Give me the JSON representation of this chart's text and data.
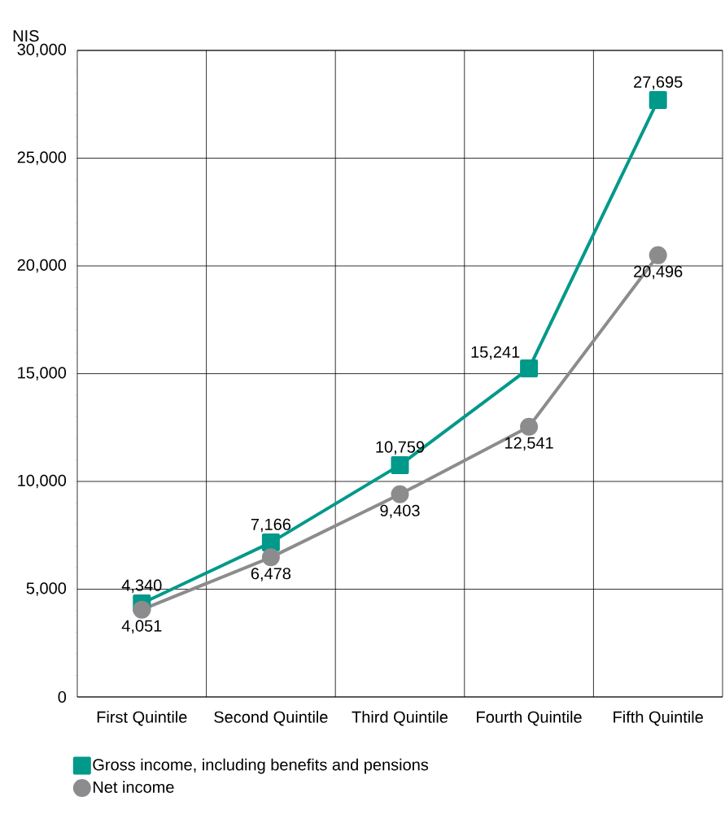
{
  "chart_data": {
    "type": "line",
    "ylabel": "NIS",
    "categories": [
      "First Quintile",
      "Second Quintile",
      "Third Quintile",
      "Fourth Quintile",
      "Fifth Quintile"
    ],
    "series": [
      {
        "name": "Gross income, including benefits and pensions",
        "color": "#00998a",
        "marker": "square",
        "values": [
          4340,
          7166,
          10759,
          15241,
          27695
        ],
        "value_labels": [
          "4,340",
          "7,166",
          "10,759",
          "15,241",
          "27,695"
        ]
      },
      {
        "name": "Net income",
        "color": "#8c8c8e",
        "marker": "circle",
        "values": [
          4051,
          6478,
          9403,
          12541,
          20496
        ],
        "value_labels": [
          "4,051",
          "6,478",
          "9,403",
          "12,541",
          "20,496"
        ]
      }
    ],
    "ylim": [
      0,
      30000
    ],
    "yticks": [
      0,
      {
        "value": 5000,
        "label": "5,000"
      },
      {
        "value": 10000,
        "label": "10,000"
      },
      {
        "value": 15000,
        "label": "15,000"
      },
      {
        "value": 20000,
        "label": "20,000"
      },
      {
        "value": 25000,
        "label": "25,000"
      },
      {
        "value": 30000,
        "label": "30,000"
      }
    ],
    "grid": true,
    "legend": "bottom left",
    "line_style": "solid"
  }
}
